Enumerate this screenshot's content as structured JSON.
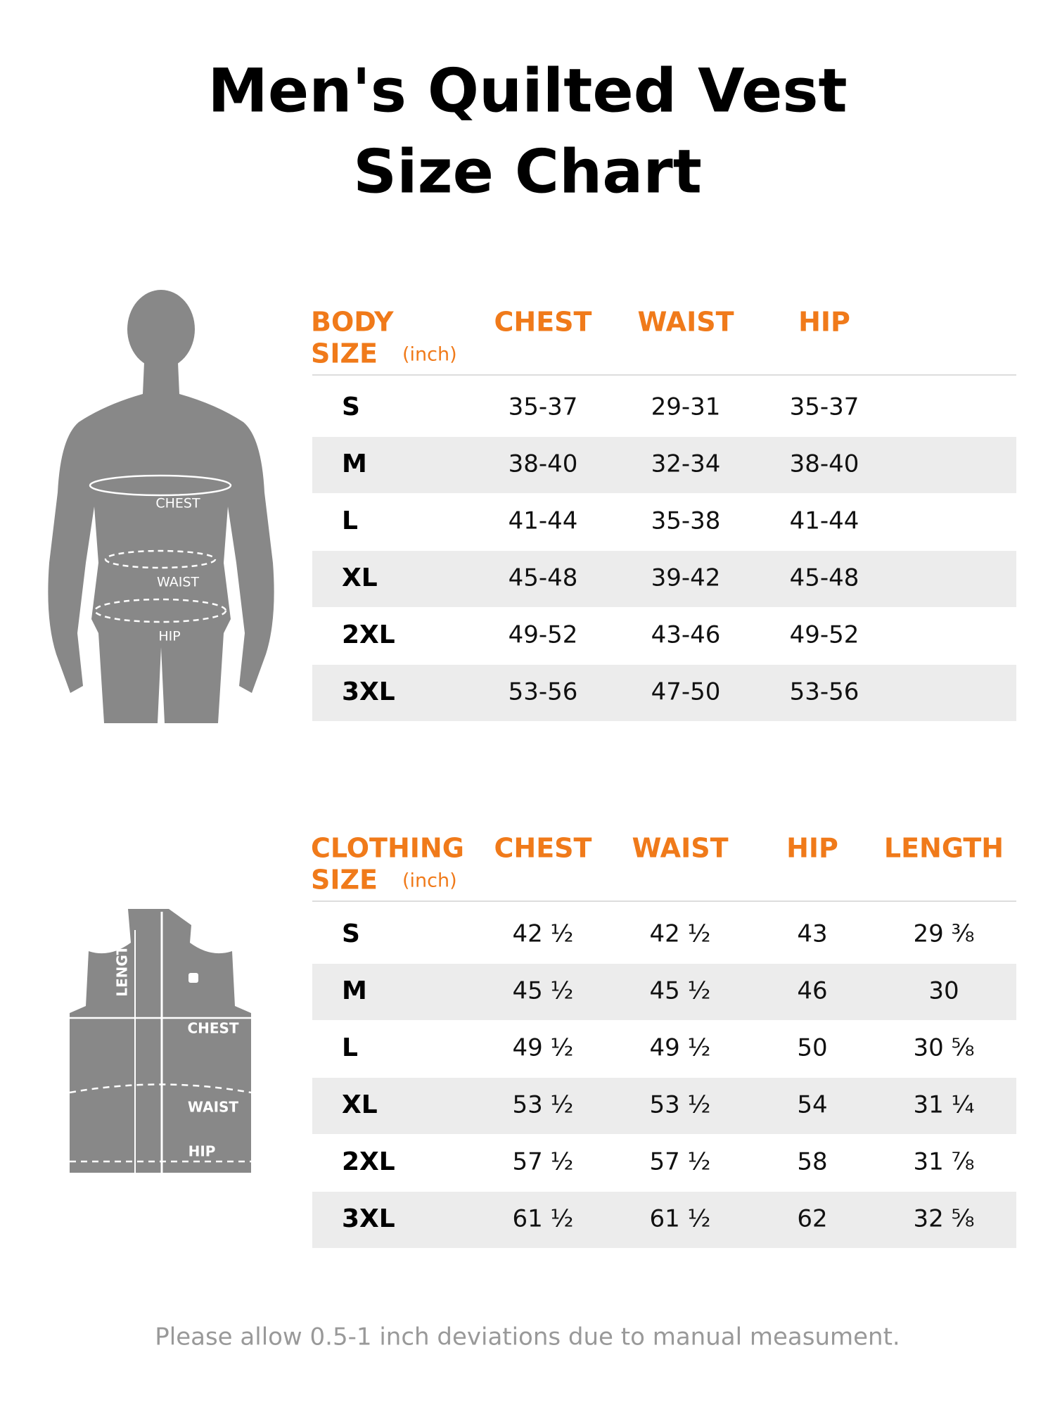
{
  "title": [
    "Men's Quilted Vest",
    "Size Chart"
  ],
  "figures": {
    "body": [
      "CHEST",
      "WAIST",
      "HIP"
    ],
    "vest": [
      "LENGTH",
      "CHEST",
      "WAIST",
      "HIP"
    ]
  },
  "body_table": {
    "header": {
      "size": [
        "BODY",
        "SIZE"
      ],
      "unit": "(inch)",
      "columns": [
        "CHEST",
        "WAIST",
        "HIP"
      ]
    },
    "rows": [
      [
        "S",
        "35-37",
        "29-31",
        "35-37"
      ],
      [
        "M",
        "38-40",
        "32-34",
        "38-40"
      ],
      [
        "L",
        "41-44",
        "35-38",
        "41-44"
      ],
      [
        "XL",
        "45-48",
        "39-42",
        "45-48"
      ],
      [
        "2XL",
        "49-52",
        "43-46",
        "49-52"
      ],
      [
        "3XL",
        "53-56",
        "47-50",
        "53-56"
      ]
    ]
  },
  "clothing_table": {
    "header": {
      "size": [
        "CLOTHING",
        "SIZE"
      ],
      "unit": "(inch)",
      "columns": [
        "CHEST",
        "WAIST",
        "HIP",
        "LENGTH"
      ]
    },
    "rows": [
      [
        "S",
        "42 ½",
        "42 ½",
        "43",
        "29 ⅜"
      ],
      [
        "M",
        "45 ½",
        "45 ½",
        "46",
        "30"
      ],
      [
        "L",
        "49 ½",
        "49 ½",
        "50",
        "30 ⅝"
      ],
      [
        "XL",
        "53 ½",
        "53 ½",
        "54",
        "31 ¼"
      ],
      [
        "2XL",
        "57 ½",
        "57 ½",
        "58",
        "31 ⅞"
      ],
      [
        "3XL",
        "61 ½",
        "61 ½",
        "62",
        "32 ⅝"
      ]
    ]
  },
  "footnote": "Please allow 0.5-1 inch deviations due to manual measument."
}
